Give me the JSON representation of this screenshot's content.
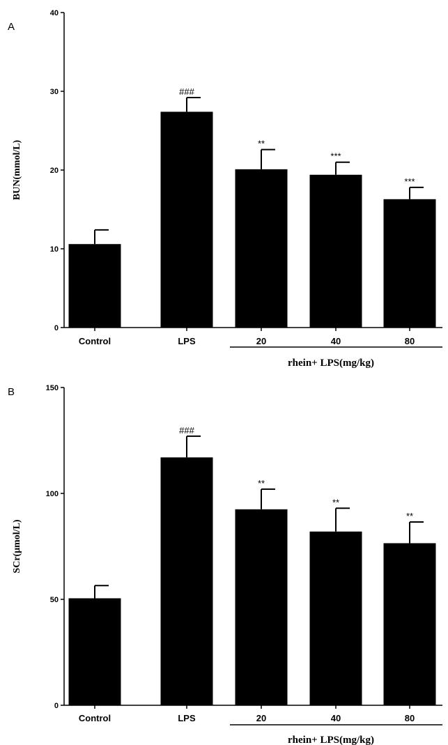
{
  "chart_data": [
    {
      "type": "bar",
      "panel": "A",
      "categories": [
        "Control",
        "LPS",
        "20",
        "40",
        "80"
      ],
      "values": [
        10.6,
        27.4,
        20.1,
        19.4,
        16.3
      ],
      "error": [
        1.8,
        1.8,
        2.5,
        1.6,
        1.5
      ],
      "significance": [
        "",
        "###",
        "**",
        "***",
        "***"
      ],
      "ylabel": "BUN(mmol/L)",
      "xlabel": "",
      "group_label": "rhein+ LPS(mg/kg)",
      "ylim": [
        0,
        40
      ],
      "yticks": [
        0,
        10,
        20,
        30,
        40
      ],
      "bar_color": "#000000"
    },
    {
      "type": "bar",
      "panel": "B",
      "categories": [
        "Control",
        "LPS",
        "20",
        "40",
        "80"
      ],
      "values": [
        50.5,
        117,
        92.5,
        82,
        76.5
      ],
      "error": [
        6,
        10,
        9.5,
        11,
        10
      ],
      "significance": [
        "",
        "###",
        "**",
        "**",
        "**"
      ],
      "ylabel": "SCr(μmol/L)",
      "xlabel": "",
      "group_label": "rhein+ LPS(mg/kg)",
      "ylim": [
        0,
        150
      ],
      "yticks": [
        0,
        50,
        100,
        150
      ],
      "bar_color": "#000000"
    }
  ]
}
